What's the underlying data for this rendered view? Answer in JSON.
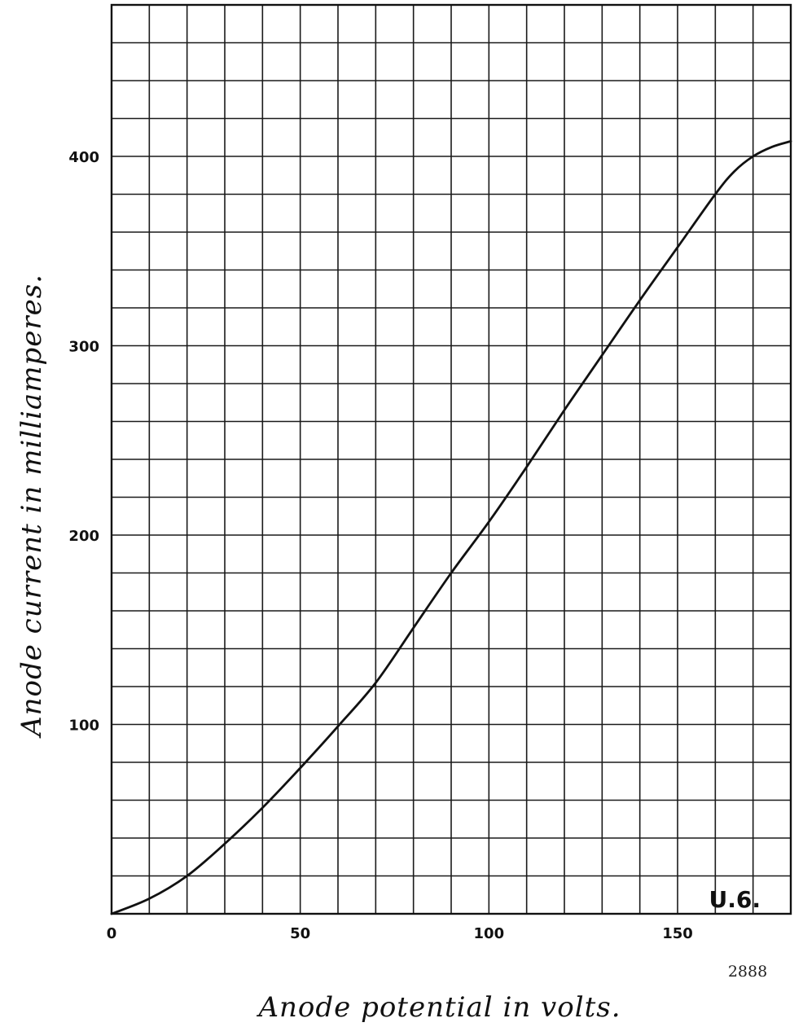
{
  "chart_data": {
    "type": "line",
    "xlabel": "Anode potential in volts.",
    "ylabel": "Anode current in milliamperes.",
    "xlim": [
      0,
      180
    ],
    "ylim": [
      0,
      480
    ],
    "x_ticks": [
      "0",
      "50",
      "100",
      "150"
    ],
    "y_ticks": [
      "100",
      "200",
      "300",
      "400"
    ],
    "grid": true,
    "grid_step": {
      "x": 10,
      "y": 20
    },
    "annotation": "U.6.",
    "series": [
      {
        "x": [
          0,
          10,
          20,
          30,
          40,
          50,
          60,
          70,
          80,
          90,
          100,
          110,
          120,
          130,
          140,
          150,
          160,
          165,
          170,
          175,
          180
        ],
        "y": [
          0,
          8,
          20,
          37,
          56,
          77,
          99,
          122,
          151,
          180,
          207,
          236,
          266,
          295,
          324,
          352,
          380,
          392,
          400,
          405,
          408
        ]
      }
    ]
  },
  "plate_number": "2888",
  "colors": {
    "ink": "#111111",
    "paper": "#ffffff"
  }
}
